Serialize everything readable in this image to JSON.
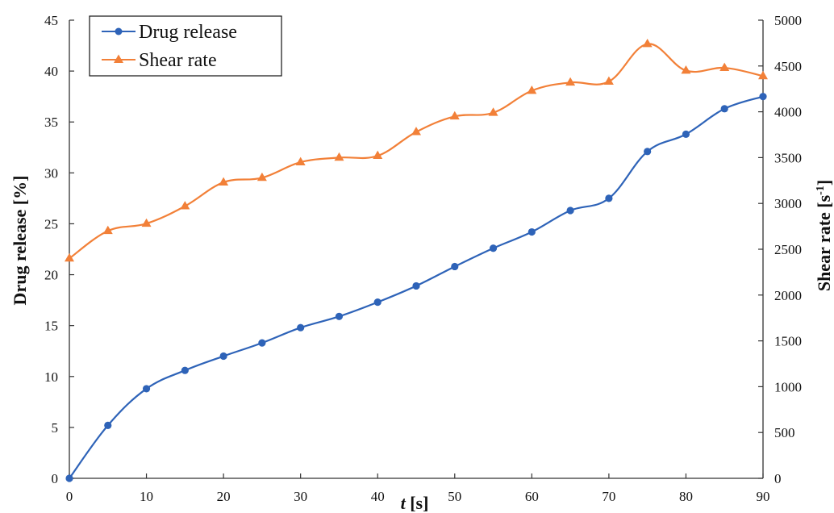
{
  "chart_data": {
    "type": "line",
    "x": [
      0,
      5,
      10,
      15,
      20,
      25,
      30,
      35,
      40,
      45,
      50,
      55,
      60,
      65,
      70,
      75,
      80,
      85,
      90
    ],
    "xlim": [
      0,
      90
    ],
    "x_ticks": [
      0,
      10,
      20,
      30,
      40,
      50,
      60,
      70,
      80,
      90
    ],
    "xlabel_italic": "t",
    "xlabel_rest": " [s]",
    "ylabel": "Drug release [%]",
    "ylim": [
      0,
      45
    ],
    "y_ticks": [
      0,
      5,
      10,
      15,
      20,
      25,
      30,
      35,
      40,
      45
    ],
    "y2label_base": "Shear rate [s",
    "y2label_sup": "-1",
    "y2label_end": "]",
    "y2lim": [
      0,
      5000
    ],
    "y2_ticks": [
      0,
      500,
      1000,
      1500,
      2000,
      2500,
      3000,
      3500,
      4000,
      4500,
      5000
    ],
    "grid": false,
    "legend_position": "top-left",
    "series": [
      {
        "name": "Drug release",
        "axis": "left",
        "color": "#2E63B8",
        "marker": "circle",
        "values": [
          0,
          5.2,
          8.8,
          10.6,
          12.0,
          13.3,
          14.8,
          15.9,
          17.3,
          18.9,
          20.8,
          22.6,
          24.2,
          26.3,
          27.5,
          32.1,
          33.8,
          36.3,
          37.5
        ]
      },
      {
        "name": "Shear rate",
        "axis": "right",
        "color": "#F28038",
        "marker": "triangle",
        "values": [
          2400,
          2700,
          2780,
          2970,
          3230,
          3280,
          3450,
          3500,
          3520,
          3780,
          3950,
          3990,
          4230,
          4320,
          4330,
          4740,
          4450,
          4480,
          4390
        ]
      }
    ]
  }
}
